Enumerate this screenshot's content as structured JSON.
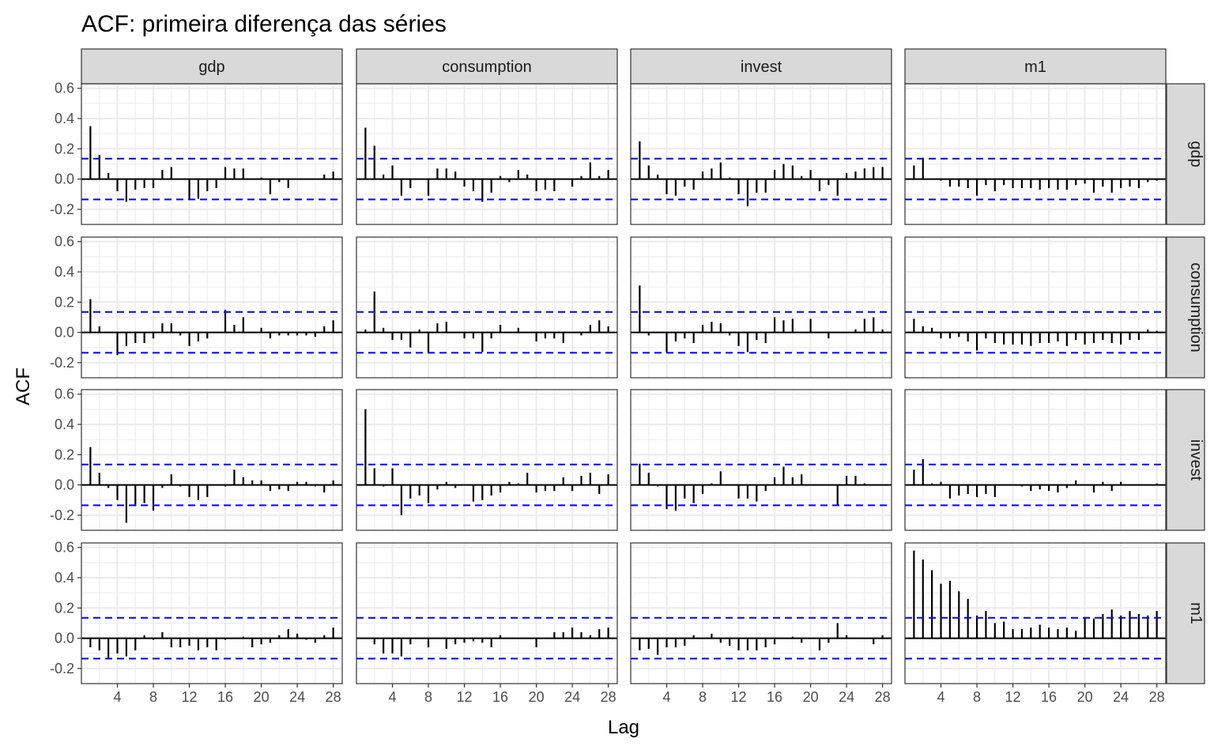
{
  "chart_data": {
    "type": "bar",
    "title": "ACF: primeira diferença das séries",
    "xlabel": "Lag",
    "ylabel": "ACF",
    "column_facets": [
      "gdp",
      "consumption",
      "invest",
      "m1"
    ],
    "row_facets": [
      "gdp",
      "consumption",
      "invest",
      "m1"
    ],
    "xlim": [
      0,
      29
    ],
    "ylim": [
      -0.3,
      0.63
    ],
    "x_ticks": [
      4,
      8,
      12,
      16,
      20,
      24,
      28
    ],
    "y_ticks": [
      -0.2,
      0.0,
      0.2,
      0.4,
      0.6
    ],
    "y_tick_labels": [
      "-0.2",
      "0.0",
      "0.2",
      "0.4",
      "0.6"
    ],
    "confidence_bound": 0.135,
    "grid": true,
    "lags": [
      1,
      2,
      3,
      4,
      5,
      6,
      7,
      8,
      9,
      10,
      11,
      12,
      13,
      14,
      15,
      16,
      17,
      18,
      19,
      20,
      21,
      22,
      23,
      24,
      25,
      26,
      27,
      28
    ],
    "colors": {
      "bars": "#000000",
      "bounds": "#0000ff",
      "strip": "#d9d9d9",
      "grid": "#ebebeb"
    },
    "panels": [
      {
        "row": "gdp",
        "col": "gdp",
        "values": [
          0.35,
          0.16,
          0.04,
          -0.08,
          -0.15,
          -0.07,
          -0.06,
          -0.06,
          0.06,
          0.08,
          0.0,
          -0.13,
          -0.13,
          -0.08,
          -0.06,
          0.08,
          0.07,
          0.07,
          0.0,
          0.01,
          -0.1,
          -0.02,
          -0.06,
          0.0,
          0.0,
          0.0,
          0.03,
          0.05
        ]
      },
      {
        "row": "gdp",
        "col": "consumption",
        "values": [
          0.34,
          0.22,
          0.03,
          0.09,
          -0.11,
          -0.06,
          0.0,
          -0.11,
          0.07,
          0.07,
          0.05,
          -0.05,
          -0.08,
          -0.15,
          -0.09,
          0.02,
          -0.02,
          0.06,
          0.03,
          -0.08,
          -0.07,
          -0.08,
          0.0,
          -0.05,
          0.02,
          0.11,
          0.02,
          0.06
        ]
      },
      {
        "row": "gdp",
        "col": "invest",
        "values": [
          0.25,
          0.09,
          0.03,
          -0.1,
          -0.11,
          -0.05,
          -0.07,
          0.05,
          0.07,
          0.11,
          0.01,
          -0.1,
          -0.18,
          -0.09,
          -0.09,
          0.06,
          0.1,
          0.09,
          0.02,
          0.06,
          -0.08,
          -0.04,
          -0.11,
          0.04,
          0.05,
          0.07,
          0.08,
          0.08
        ]
      },
      {
        "row": "gdp",
        "col": "m1",
        "values": [
          0.09,
          0.14,
          0.0,
          -0.01,
          -0.05,
          -0.05,
          -0.06,
          -0.11,
          -0.04,
          -0.08,
          -0.04,
          -0.06,
          -0.06,
          -0.06,
          -0.07,
          -0.06,
          -0.07,
          -0.07,
          -0.04,
          -0.03,
          -0.09,
          -0.05,
          -0.09,
          -0.06,
          -0.05,
          -0.06,
          -0.02,
          -0.01
        ]
      },
      {
        "row": "consumption",
        "col": "gdp",
        "values": [
          0.22,
          0.04,
          0.0,
          -0.15,
          -0.09,
          -0.07,
          -0.07,
          -0.04,
          0.06,
          0.06,
          -0.02,
          -0.09,
          -0.06,
          -0.04,
          0.0,
          0.15,
          0.05,
          0.1,
          0.0,
          0.03,
          -0.04,
          -0.02,
          -0.02,
          -0.02,
          -0.02,
          -0.03,
          0.04,
          0.08
        ]
      },
      {
        "row": "consumption",
        "col": "consumption",
        "values": [
          0.02,
          0.27,
          0.03,
          -0.05,
          -0.05,
          -0.1,
          0.02,
          -0.13,
          0.06,
          0.07,
          0.0,
          -0.04,
          -0.04,
          -0.13,
          -0.04,
          0.05,
          0.0,
          0.03,
          0.0,
          -0.06,
          -0.04,
          -0.04,
          -0.07,
          0.0,
          -0.02,
          0.05,
          0.08,
          0.04
        ]
      },
      {
        "row": "consumption",
        "col": "invest",
        "values": [
          0.31,
          -0.02,
          0.0,
          -0.13,
          -0.06,
          -0.04,
          -0.07,
          0.05,
          0.07,
          0.06,
          -0.02,
          -0.09,
          -0.13,
          -0.05,
          -0.07,
          0.1,
          0.08,
          0.09,
          0.0,
          0.09,
          0.0,
          -0.04,
          0.0,
          0.0,
          0.02,
          0.09,
          0.1,
          0.02
        ]
      },
      {
        "row": "consumption",
        "col": "m1",
        "values": [
          0.09,
          0.04,
          0.03,
          -0.04,
          -0.04,
          -0.03,
          -0.06,
          -0.12,
          -0.04,
          -0.07,
          -0.08,
          -0.08,
          -0.08,
          -0.09,
          -0.07,
          -0.07,
          -0.06,
          -0.09,
          -0.05,
          -0.08,
          -0.07,
          -0.05,
          -0.07,
          -0.08,
          -0.05,
          -0.05,
          0.02,
          0.01
        ]
      },
      {
        "row": "invest",
        "col": "gdp",
        "values": [
          0.25,
          0.08,
          -0.02,
          -0.1,
          -0.25,
          -0.14,
          -0.12,
          -0.17,
          -0.02,
          0.07,
          -0.01,
          -0.08,
          -0.1,
          -0.08,
          0.0,
          -0.01,
          0.1,
          0.05,
          0.03,
          0.03,
          -0.04,
          -0.03,
          -0.04,
          0.02,
          0.02,
          -0.01,
          -0.05,
          0.03
        ]
      },
      {
        "row": "invest",
        "col": "consumption",
        "values": [
          0.5,
          0.11,
          -0.01,
          0.11,
          -0.2,
          -0.09,
          -0.07,
          -0.12,
          -0.03,
          0.02,
          -0.02,
          0.0,
          -0.11,
          -0.1,
          -0.07,
          -0.05,
          0.02,
          0.01,
          0.08,
          -0.05,
          -0.04,
          -0.04,
          0.05,
          -0.04,
          0.06,
          0.08,
          -0.06,
          0.07
        ]
      },
      {
        "row": "invest",
        "col": "invest",
        "values": [
          0.14,
          0.08,
          -0.01,
          -0.16,
          -0.17,
          -0.09,
          -0.12,
          -0.06,
          0.01,
          0.09,
          0.0,
          -0.09,
          -0.09,
          -0.11,
          -0.04,
          0.05,
          0.12,
          0.05,
          0.07,
          0.0,
          0.0,
          0.0,
          -0.13,
          0.06,
          0.06,
          0.01,
          0.0,
          0.0
        ]
      },
      {
        "row": "invest",
        "col": "m1",
        "values": [
          0.1,
          0.17,
          0.01,
          0.02,
          -0.09,
          -0.07,
          -0.06,
          -0.08,
          -0.06,
          -0.08,
          0.0,
          0.0,
          -0.01,
          -0.04,
          -0.03,
          -0.04,
          -0.05,
          -0.02,
          0.03,
          0.0,
          -0.05,
          0.02,
          -0.04,
          0.02,
          0.0,
          0.0,
          0.0,
          0.01
        ]
      },
      {
        "row": "m1",
        "col": "gdp",
        "values": [
          -0.06,
          -0.08,
          -0.14,
          -0.1,
          -0.12,
          -0.08,
          0.02,
          -0.01,
          0.04,
          -0.06,
          -0.06,
          -0.05,
          -0.08,
          -0.06,
          -0.08,
          -0.01,
          0.0,
          0.01,
          -0.06,
          -0.04,
          -0.03,
          0.02,
          0.06,
          0.03,
          -0.01,
          -0.03,
          0.02,
          0.07
        ]
      },
      {
        "row": "m1",
        "col": "consumption",
        "values": [
          0.0,
          -0.04,
          -0.1,
          -0.1,
          -0.12,
          -0.04,
          0.0,
          -0.06,
          0.0,
          -0.07,
          -0.04,
          -0.03,
          -0.02,
          -0.03,
          -0.06,
          0.02,
          0.0,
          0.0,
          0.0,
          -0.06,
          0.0,
          0.04,
          0.04,
          0.07,
          0.04,
          0.02,
          0.06,
          0.07
        ]
      },
      {
        "row": "m1",
        "col": "invest",
        "values": [
          -0.08,
          -0.07,
          -0.11,
          -0.06,
          -0.06,
          -0.05,
          0.02,
          0.0,
          0.03,
          -0.03,
          -0.05,
          -0.08,
          -0.08,
          -0.08,
          -0.06,
          -0.04,
          0.0,
          0.01,
          -0.03,
          0.0,
          -0.08,
          -0.03,
          0.1,
          0.02,
          0.0,
          0.0,
          -0.04,
          0.02
        ]
      },
      {
        "row": "m1",
        "col": "m1",
        "values": [
          0.58,
          0.52,
          0.45,
          0.36,
          0.38,
          0.31,
          0.26,
          0.15,
          0.18,
          0.1,
          0.11,
          0.06,
          0.06,
          0.07,
          0.09,
          0.07,
          0.06,
          0.07,
          0.05,
          0.14,
          0.13,
          0.16,
          0.19,
          0.15,
          0.18,
          0.16,
          0.15,
          0.18
        ]
      }
    ]
  }
}
